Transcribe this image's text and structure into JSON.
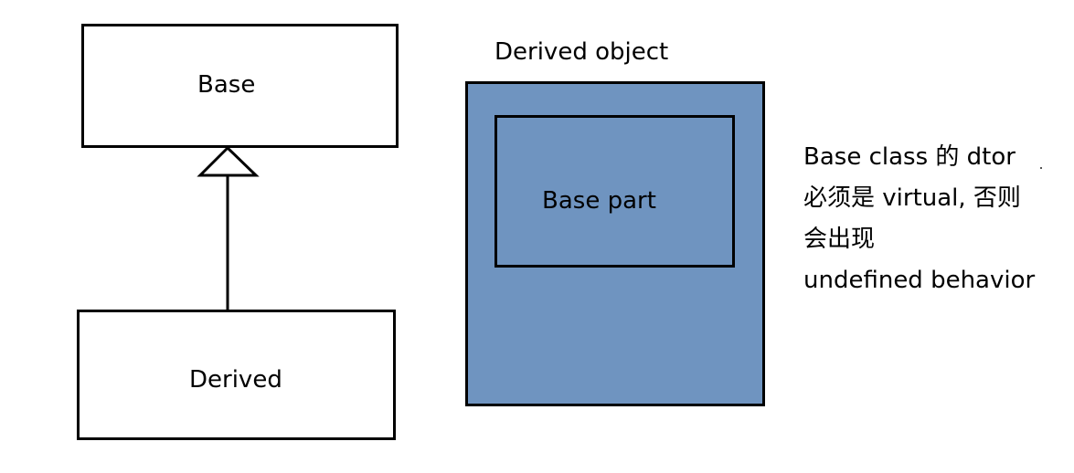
{
  "class_diagram": {
    "base_label": "Base",
    "derived_label": "Derived"
  },
  "memory_layout": {
    "title": "Derived object",
    "inner_label": "Base part",
    "fill_color": "#6f94c0"
  },
  "note": {
    "lines": [
      "Base class 的 dtor",
      "必须是 virtual, 否则",
      "会出现",
      "undefined behavior"
    ]
  }
}
